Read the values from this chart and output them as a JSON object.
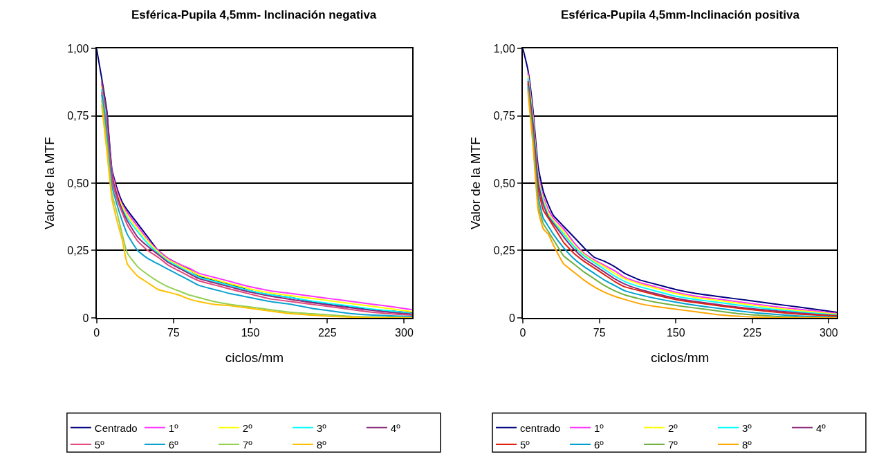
{
  "chart_data": [
    {
      "type": "line",
      "title": "Esférica-Pupila 4,5mm- Inclinación negativa",
      "xlabel": "ciclos/mm",
      "ylabel": "Valor de la MTF",
      "x": [
        0,
        5,
        10,
        15,
        20,
        25,
        30,
        40,
        50,
        60,
        70,
        80,
        90,
        100,
        115,
        130,
        150,
        170,
        190,
        210,
        230,
        250,
        270,
        290,
        308
      ],
      "xlim": [
        0,
        308
      ],
      "xticks": [
        0,
        75,
        150,
        225,
        300
      ],
      "ylim": [
        0,
        1
      ],
      "yticks": [
        0,
        {
          "value": 0.25,
          "label": "0,25"
        },
        {
          "value": 0.5,
          "label": "0,50"
        },
        {
          "value": 0.75,
          "label": "0,75"
        },
        {
          "value": 1,
          "label": "1,00"
        }
      ],
      "grid": "y",
      "legend": "bottom",
      "marker": "none",
      "line_style": "solid",
      "series": [
        {
          "name": "Centrado",
          "color": "#000080",
          "values": [
            1.0,
            0.89,
            0.77,
            0.55,
            0.48,
            0.43,
            0.4,
            0.35,
            0.3,
            0.25,
            0.22,
            0.2,
            0.18,
            0.155,
            0.14,
            0.125,
            0.1,
            0.085,
            0.075,
            0.06,
            0.05,
            0.04,
            0.03,
            0.024,
            0.018
          ]
        },
        {
          "name": "1º",
          "color": "#ff33ff",
          "values": [
            null,
            0.87,
            0.75,
            0.54,
            0.47,
            0.42,
            0.39,
            0.34,
            0.29,
            0.25,
            0.22,
            0.2,
            0.185,
            0.165,
            0.15,
            0.135,
            0.115,
            0.1,
            0.09,
            0.08,
            0.07,
            0.06,
            0.05,
            0.04,
            0.03
          ]
        },
        {
          "name": "2º",
          "color": "#ffff00",
          "values": [
            null,
            0.86,
            0.73,
            0.53,
            0.46,
            0.415,
            0.38,
            0.33,
            0.285,
            0.245,
            0.215,
            0.195,
            0.178,
            0.158,
            0.142,
            0.127,
            0.107,
            0.092,
            0.082,
            0.072,
            0.062,
            0.052,
            0.042,
            0.032,
            0.023
          ]
        },
        {
          "name": "3º",
          "color": "#00ffff",
          "values": [
            null,
            0.85,
            0.72,
            0.52,
            0.45,
            0.405,
            0.37,
            0.32,
            0.275,
            0.24,
            0.21,
            0.19,
            0.17,
            0.15,
            0.135,
            0.12,
            0.1,
            0.085,
            0.075,
            0.062,
            0.052,
            0.042,
            0.032,
            0.024,
            0.016
          ]
        },
        {
          "name": "4º",
          "color": "#8b2a7a",
          "values": [
            null,
            0.88,
            0.76,
            0.53,
            0.455,
            0.4,
            0.36,
            0.3,
            0.265,
            0.235,
            0.205,
            0.185,
            0.165,
            0.145,
            0.13,
            0.115,
            0.095,
            0.08,
            0.068,
            0.056,
            0.046,
            0.036,
            0.027,
            0.019,
            0.013
          ]
        },
        {
          "name": "5º",
          "color": "#e04a7e",
          "values": [
            null,
            0.84,
            0.7,
            0.51,
            0.44,
            0.39,
            0.345,
            0.285,
            0.25,
            0.225,
            0.195,
            0.175,
            0.155,
            0.137,
            0.122,
            0.107,
            0.088,
            0.07,
            0.06,
            0.05,
            0.04,
            0.03,
            0.02,
            0.014,
            0.01
          ]
        },
        {
          "name": "6º",
          "color": "#0aa0d0",
          "values": [
            null,
            0.83,
            0.68,
            0.49,
            0.42,
            0.36,
            0.31,
            0.25,
            0.22,
            0.2,
            0.18,
            0.16,
            0.14,
            0.12,
            0.105,
            0.09,
            0.075,
            0.06,
            0.05,
            0.035,
            0.025,
            0.015,
            0.01,
            0.007,
            0.005
          ]
        },
        {
          "name": "7º",
          "color": "#92d050",
          "values": [
            null,
            0.81,
            0.65,
            0.46,
            0.39,
            0.31,
            0.24,
            0.19,
            0.16,
            0.135,
            0.115,
            0.1,
            0.085,
            0.075,
            0.06,
            0.05,
            0.04,
            0.03,
            0.02,
            0.015,
            0.01,
            0.005,
            0.003,
            0.002,
            0
          ]
        },
        {
          "name": "8º",
          "color": "#ffc000",
          "values": [
            null,
            0.79,
            0.62,
            0.44,
            0.36,
            0.29,
            0.2,
            0.155,
            0.13,
            0.105,
            0.095,
            0.085,
            0.07,
            0.06,
            0.05,
            0.045,
            0.035,
            0.025,
            0.015,
            0.01,
            0.005,
            0.002,
            0,
            0,
            0
          ]
        }
      ]
    },
    {
      "type": "line",
      "title": "Esférica-Pupila 4,5mm-Inclinación positiva",
      "xlabel": "ciclos/mm",
      "ylabel": "Valor de la MTF",
      "x": [
        0,
        5,
        10,
        15,
        20,
        25,
        30,
        40,
        50,
        60,
        70,
        80,
        90,
        100,
        115,
        130,
        150,
        170,
        190,
        210,
        230,
        250,
        270,
        290,
        308
      ],
      "xlim": [
        0,
        308
      ],
      "xticks": [
        0,
        75,
        150,
        225,
        300
      ],
      "ylim": [
        0,
        1
      ],
      "yticks": [
        0,
        {
          "value": 0.25,
          "label": "0,25"
        },
        {
          "value": 0.5,
          "label": "0,50"
        },
        {
          "value": 0.75,
          "label": "0,75"
        },
        {
          "value": 1,
          "label": "1,00"
        }
      ],
      "grid": "y",
      "legend": "bottom",
      "marker": "none",
      "line_style": "solid",
      "series": [
        {
          "name": "centrado",
          "color": "#000080",
          "values": [
            1.0,
            0.92,
            0.77,
            0.56,
            0.47,
            0.42,
            0.38,
            0.34,
            0.3,
            0.26,
            0.225,
            0.21,
            0.19,
            0.165,
            0.14,
            0.125,
            0.105,
            0.09,
            0.08,
            0.07,
            0.06,
            0.05,
            0.04,
            0.03,
            0.02
          ]
        },
        {
          "name": "1º",
          "color": "#ff33ff",
          "values": [
            null,
            0.91,
            0.75,
            0.53,
            0.45,
            0.4,
            0.37,
            0.33,
            0.28,
            0.24,
            0.215,
            0.195,
            0.175,
            0.15,
            0.13,
            0.115,
            0.095,
            0.08,
            0.07,
            0.06,
            0.05,
            0.04,
            0.032,
            0.024,
            0.016
          ]
        },
        {
          "name": "2º",
          "color": "#ffff00",
          "values": [
            null,
            0.9,
            0.74,
            0.52,
            0.44,
            0.39,
            0.36,
            0.32,
            0.27,
            0.235,
            0.21,
            0.19,
            0.165,
            0.145,
            0.125,
            0.11,
            0.09,
            0.075,
            0.065,
            0.055,
            0.045,
            0.035,
            0.027,
            0.02,
            0.013
          ]
        },
        {
          "name": "3º",
          "color": "#00ffff",
          "values": [
            null,
            0.89,
            0.73,
            0.51,
            0.43,
            0.38,
            0.355,
            0.31,
            0.265,
            0.23,
            0.205,
            0.18,
            0.155,
            0.135,
            0.115,
            0.1,
            0.08,
            0.068,
            0.058,
            0.048,
            0.038,
            0.03,
            0.022,
            0.016,
            0.01
          ]
        },
        {
          "name": "4º",
          "color": "#8b2a7a",
          "values": [
            null,
            0.88,
            0.72,
            0.5,
            0.42,
            0.375,
            0.35,
            0.3,
            0.255,
            0.22,
            0.195,
            0.17,
            0.145,
            0.125,
            0.105,
            0.09,
            0.072,
            0.06,
            0.05,
            0.04,
            0.032,
            0.025,
            0.018,
            0.012,
            0.008
          ]
        },
        {
          "name": "5º",
          "color": "#e02010",
          "values": [
            null,
            0.87,
            0.7,
            0.48,
            0.4,
            0.37,
            0.34,
            0.28,
            0.24,
            0.21,
            0.185,
            0.16,
            0.135,
            0.115,
            0.1,
            0.085,
            0.068,
            0.056,
            0.046,
            0.036,
            0.028,
            0.02,
            0.014,
            0.01,
            0.006
          ]
        },
        {
          "name": "6º",
          "color": "#00a0d0",
          "values": [
            null,
            0.86,
            0.68,
            0.45,
            0.37,
            0.34,
            0.31,
            0.26,
            0.22,
            0.19,
            0.165,
            0.14,
            0.12,
            0.1,
            0.085,
            0.072,
            0.058,
            0.046,
            0.036,
            0.026,
            0.018,
            0.012,
            0.007,
            0.004,
            0.002
          ]
        },
        {
          "name": "7º",
          "color": "#70b040",
          "values": [
            null,
            0.85,
            0.66,
            0.42,
            0.35,
            0.32,
            0.29,
            0.23,
            0.2,
            0.17,
            0.145,
            0.12,
            0.1,
            0.085,
            0.07,
            0.058,
            0.046,
            0.036,
            0.026,
            0.016,
            0.01,
            0.005,
            0.002,
            0.001,
            0
          ]
        },
        {
          "name": "8º",
          "color": "#ffa500",
          "values": [
            null,
            0.84,
            0.64,
            0.4,
            0.33,
            0.31,
            0.27,
            0.2,
            0.17,
            0.14,
            0.115,
            0.095,
            0.08,
            0.068,
            0.052,
            0.042,
            0.032,
            0.022,
            0.012,
            0.006,
            0.002,
            0,
            0,
            0,
            0
          ]
        }
      ]
    }
  ]
}
